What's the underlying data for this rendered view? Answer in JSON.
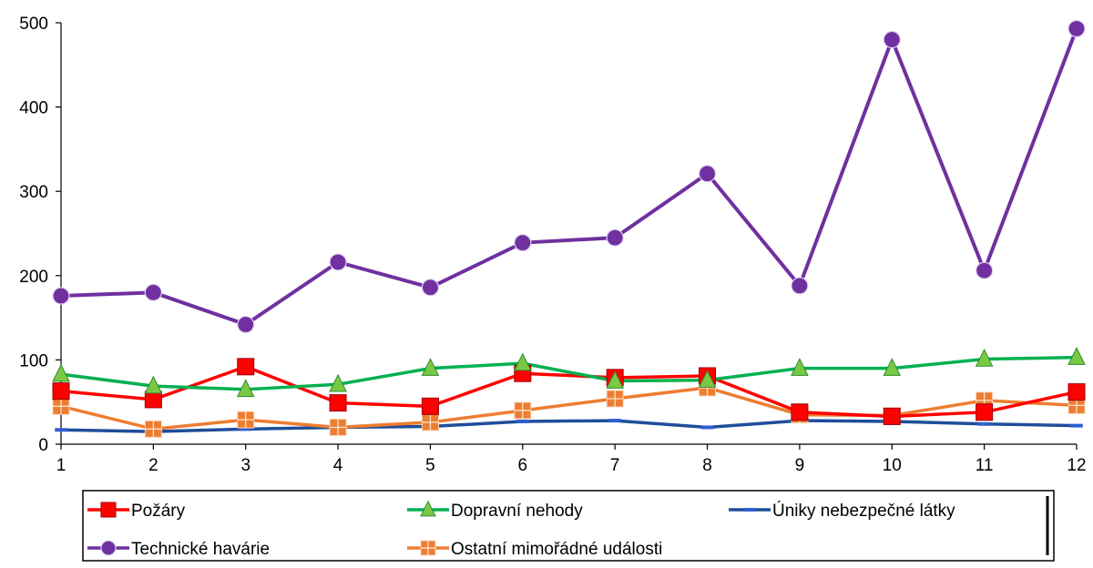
{
  "chart_data": {
    "type": "line",
    "title": "",
    "xlabel": "",
    "ylabel": "",
    "categories": [
      "1",
      "2",
      "3",
      "4",
      "5",
      "6",
      "7",
      "8",
      "9",
      "10",
      "11",
      "12"
    ],
    "ylim": [
      0,
      500
    ],
    "yticks": [
      0,
      100,
      200,
      300,
      400,
      500
    ],
    "grid": false,
    "legend_position": "bottom",
    "series": [
      {
        "name": "Požáry",
        "color": "#ff0000",
        "marker": "square",
        "values": [
          63,
          53,
          92,
          49,
          45,
          84,
          79,
          81,
          38,
          33,
          38,
          62
        ]
      },
      {
        "name": "Dopravní nehody",
        "color": "#00b050",
        "marker": "triangle",
        "values": [
          83,
          69,
          65,
          71,
          90,
          96,
          75,
          76,
          90,
          90,
          101,
          103
        ]
      },
      {
        "name": "Úniky nebezpečné látky",
        "color": "#1f4e9a",
        "marker": "dash",
        "values": [
          17,
          15,
          18,
          20,
          21,
          27,
          28,
          20,
          28,
          27,
          24,
          22
        ]
      },
      {
        "name": "Technické havárie",
        "color": "#7030a0",
        "marker": "circle",
        "values": [
          176,
          180,
          142,
          216,
          186,
          239,
          245,
          321,
          188,
          480,
          206,
          493
        ]
      },
      {
        "name": "Ostatní mimořádné události",
        "color": "#ed7d31",
        "marker": "cross-square",
        "values": [
          45,
          18,
          29,
          20,
          26,
          40,
          54,
          67,
          35,
          34,
          52,
          46
        ]
      }
    ]
  }
}
